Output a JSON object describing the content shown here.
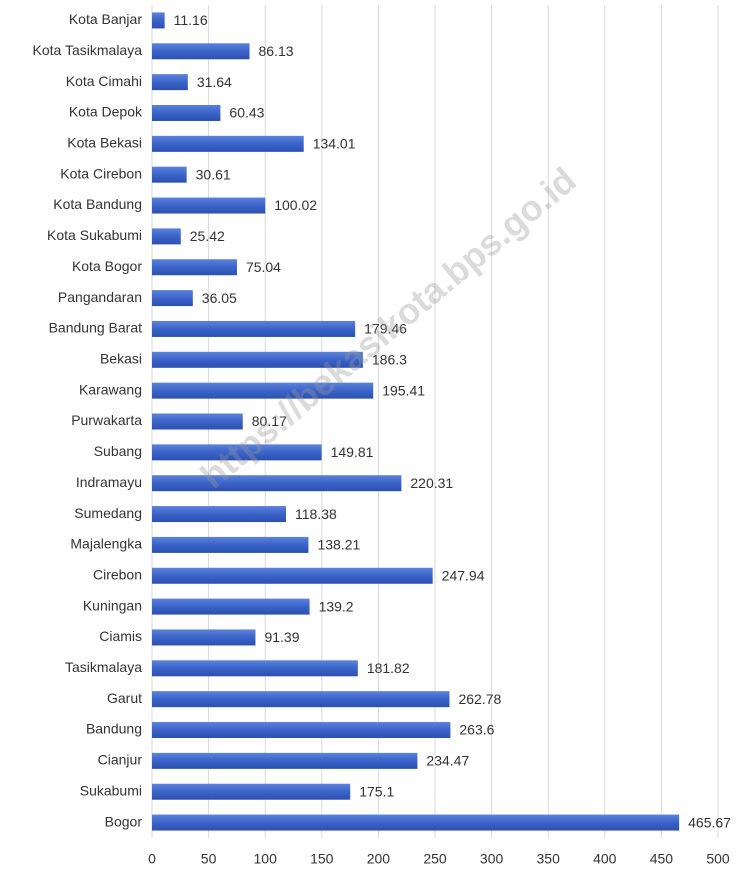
{
  "chart_data": {
    "type": "barh",
    "watermark": "https://bekasikota.bps.go.id",
    "categories": [
      "Kota Banjar",
      "Kota Tasikmalaya",
      "Kota Cimahi",
      "Kota Depok",
      "Kota Bekasi",
      "Kota Cirebon",
      "Kota Bandung",
      "Kota Sukabumi",
      "Kota Bogor",
      "Pangandaran",
      "Bandung Barat",
      "Bekasi",
      "Karawang",
      "Purwakarta",
      "Subang",
      "Indramayu",
      "Sumedang",
      "Majalengka",
      "Cirebon",
      "Kuningan",
      "Ciamis",
      "Tasikmalaya",
      "Garut",
      "Bandung",
      "Cianjur",
      "Sukabumi",
      "Bogor"
    ],
    "values": [
      11.16,
      86.13,
      31.64,
      60.43,
      134.01,
      30.61,
      100.02,
      25.42,
      75.04,
      36.05,
      179.46,
      186.3,
      195.41,
      80.17,
      149.81,
      220.31,
      118.38,
      138.21,
      247.94,
      139.2,
      91.39,
      181.82,
      262.78,
      263.6,
      234.47,
      175.1,
      465.67
    ],
    "color": "#3b63c8",
    "xlim": [
      0,
      500
    ],
    "xticks": [
      0,
      50,
      100,
      150,
      200,
      250,
      300,
      350,
      400,
      450,
      500
    ],
    "grid": true
  }
}
